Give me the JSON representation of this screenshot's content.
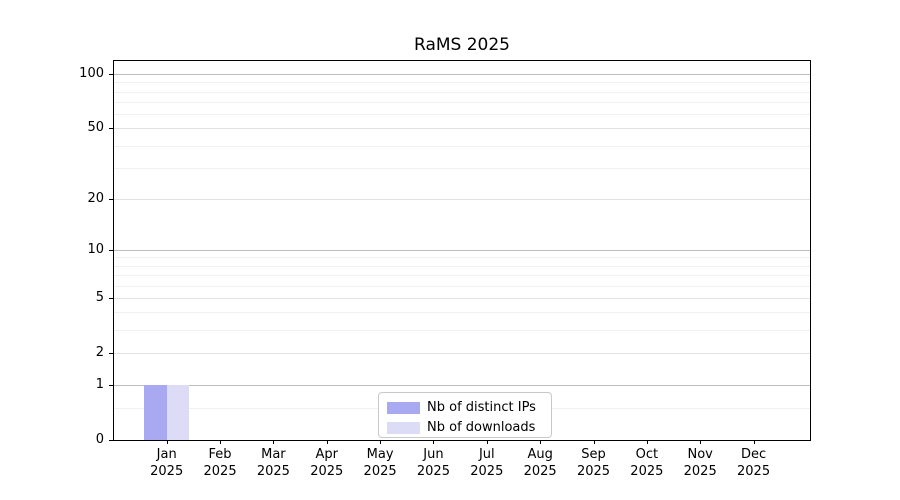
{
  "chart_data": {
    "type": "bar",
    "title": "RaMS 2025",
    "months": [
      "Jan",
      "Feb",
      "Mar",
      "Apr",
      "May",
      "Jun",
      "Jul",
      "Aug",
      "Sep",
      "Oct",
      "Nov",
      "Dec"
    ],
    "year_label": "2025",
    "series": [
      {
        "name": "Nb of distinct IPs",
        "color": "#a9a9f1",
        "values": [
          1,
          0,
          0,
          0,
          0,
          0,
          0,
          0,
          0,
          0,
          0,
          0
        ]
      },
      {
        "name": "Nb of downloads",
        "color": "#dcdcf7",
        "values": [
          1,
          0,
          0,
          0,
          0,
          0,
          0,
          0,
          0,
          0,
          0,
          0
        ]
      }
    ],
    "yscale": "log1p",
    "ylim": [
      0,
      118
    ],
    "yticks": [
      0,
      1,
      2,
      5,
      10,
      20,
      50,
      100
    ],
    "yticks_decade": [
      1,
      10,
      100
    ],
    "yticks_submajor": [
      2,
      5,
      20,
      50
    ],
    "yticks_minor": [
      0.5,
      3,
      4,
      6,
      7,
      8,
      9,
      30,
      40,
      60,
      70,
      80,
      90
    ],
    "grid": true,
    "legend_position": "bottom-center",
    "xlabel": "",
    "ylabel": ""
  }
}
